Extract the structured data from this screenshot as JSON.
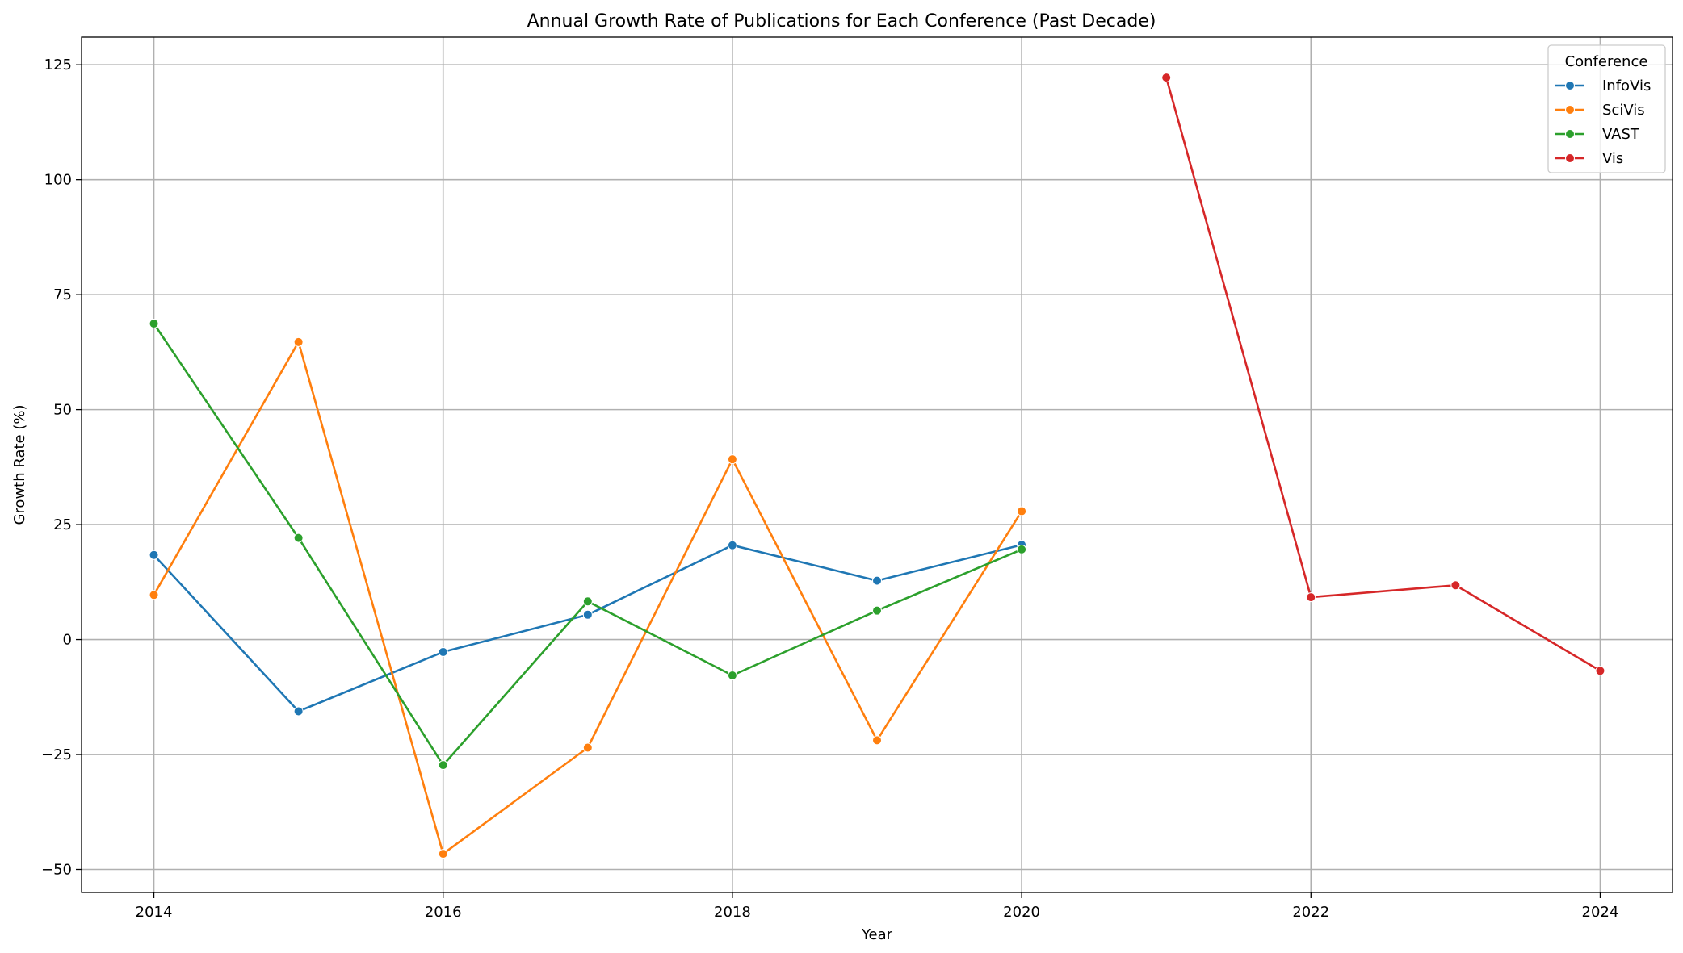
{
  "chart_data": {
    "type": "line",
    "title": "Annual Growth Rate of Publications for Each Conference (Past Decade)",
    "xlabel": "Year",
    "ylabel": "Growth Rate (%)",
    "xlim": [
      2013.5,
      2024.5
    ],
    "ylim": [
      -55,
      131
    ],
    "x_ticks": [
      2014,
      2016,
      2018,
      2020,
      2022,
      2024
    ],
    "y_ticks": [
      -50,
      -25,
      0,
      25,
      50,
      75,
      100,
      125
    ],
    "grid": true,
    "legend": {
      "title": "Conference",
      "placement": "top-right"
    },
    "series": [
      {
        "name": "InfoVis",
        "color": "#1f77b4",
        "x": [
          2014,
          2015,
          2016,
          2017,
          2018,
          2019,
          2020
        ],
        "values": [
          18.4,
          -15.6,
          -2.7,
          5.4,
          20.5,
          12.8,
          20.6
        ]
      },
      {
        "name": "SciVis",
        "color": "#ff7f0e",
        "x": [
          2014,
          2015,
          2016,
          2017,
          2018,
          2019,
          2020
        ],
        "values": [
          9.7,
          64.7,
          -46.6,
          -23.5,
          39.2,
          -21.9,
          27.9
        ]
      },
      {
        "name": "VAST",
        "color": "#2ca02c",
        "x": [
          2014,
          2015,
          2016,
          2017,
          2018,
          2019,
          2020
        ],
        "values": [
          68.7,
          22.1,
          -27.3,
          8.3,
          -7.8,
          6.3,
          19.6
        ]
      },
      {
        "name": "Vis",
        "color": "#d62728",
        "x": [
          2021,
          2022,
          2023,
          2024
        ],
        "values": [
          122.2,
          9.2,
          11.8,
          -6.8
        ]
      }
    ]
  }
}
